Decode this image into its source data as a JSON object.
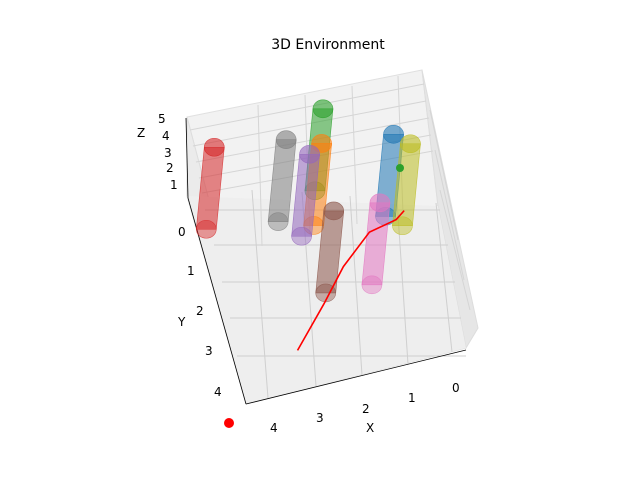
{
  "chart_data": {
    "type": "3d-scene",
    "title": "3D Environment",
    "xlabel": "X",
    "ylabel": "Y",
    "zlabel": "Z",
    "x_ticks": [
      "0",
      "1",
      "2",
      "3",
      "4"
    ],
    "y_ticks": [
      "0",
      "1",
      "2",
      "3",
      "4"
    ],
    "z_ticks": [
      "1",
      "2",
      "3",
      "4",
      "5"
    ],
    "xlim": [
      0,
      5
    ],
    "ylim": [
      0,
      5
    ],
    "zlim": [
      0,
      5
    ],
    "grid": true,
    "cylinders": [
      {
        "color": "#d62728",
        "x": 4.8,
        "y": 0.8
      },
      {
        "color": "#7f7f7f",
        "x": 3.3,
        "y": 0.6
      },
      {
        "color": "#2ca02c",
        "x": 2.4,
        "y": -0.3
      },
      {
        "color": "#9467bd",
        "x": 2.9,
        "y": 1.0
      },
      {
        "color": "#ff7f0e",
        "x": 2.6,
        "y": 0.7
      },
      {
        "color": "#1f77b4",
        "x": 1.1,
        "y": 0.4
      },
      {
        "color": "#bcbd22",
        "x": 0.8,
        "y": 0.7
      },
      {
        "color": "#8c564b",
        "x": 2.7,
        "y": 2.6
      },
      {
        "color": "#e377c2",
        "x": 1.7,
        "y": 2.5
      }
    ],
    "path": {
      "color": "#ff0000",
      "points": [
        [
          3.6,
          4.0
        ],
        [
          2.8,
          2.9
        ],
        [
          2.2,
          1.9
        ],
        [
          1.5,
          0.9
        ],
        [
          0.9,
          0.5
        ],
        [
          0.7,
          0.2
        ]
      ]
    },
    "start_marker": {
      "color": "#ff0000",
      "x": 4.2,
      "y": 4.3
    },
    "goal_marker": {
      "color": "#2ca02c",
      "x": 1.0,
      "y": 0.2
    }
  }
}
